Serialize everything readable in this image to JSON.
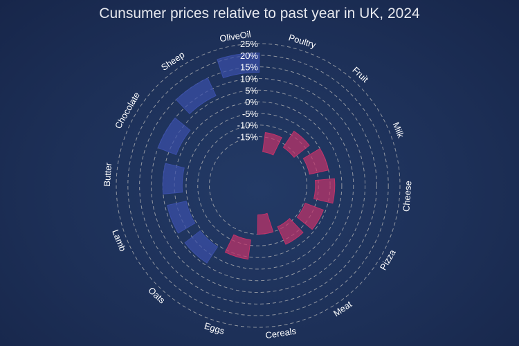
{
  "chart_data": {
    "type": "bar",
    "subtype": "radial",
    "title": "Cunsumer prices relative to past year in UK, 2024",
    "categories": [
      "Poultry",
      "Fruit",
      "Milk",
      "Cheese",
      "Pizza",
      "Meat",
      "Cereals",
      "Eggs",
      "Oats",
      "Lamb",
      "Butter",
      "Chocolate",
      "Sheep",
      "OliveOil"
    ],
    "values": [
      -13,
      -8,
      -5,
      -3,
      -6,
      -8,
      -15,
      -4,
      4,
      4,
      5,
      10,
      15,
      21
    ],
    "radial_axis": {
      "range": [
        -30,
        25
      ],
      "ticks": [
        -15,
        -10,
        -5,
        0,
        5,
        10,
        15,
        20,
        25
      ],
      "tick_labels": [
        "-15%",
        "-10%",
        "-5%",
        "0%",
        "5%",
        "10%",
        "15%",
        "20%",
        "25%"
      ]
    },
    "colors": {
      "negative": "#c0336a",
      "positive": "#3a4fa8",
      "grid": "#b8b8b8",
      "text": "#ffffff"
    },
    "grid": true,
    "legend": "none"
  }
}
